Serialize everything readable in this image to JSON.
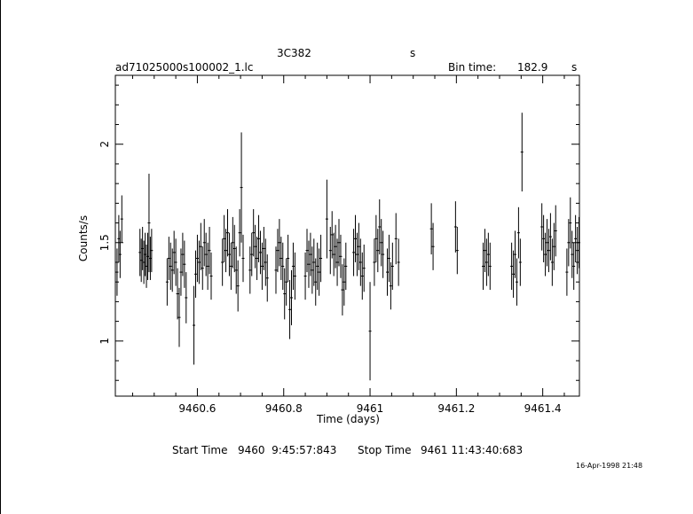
{
  "header": {
    "object": "3C382",
    "object_unit": "s",
    "file": "ad71025000s100002_1.lc",
    "bin_label": "Bin time:",
    "bin_value": "182.9",
    "bin_unit": "s"
  },
  "footer": {
    "start_label": "Start Time",
    "start_value": "9460  9:45:57:843",
    "stop_label": "Stop Time",
    "stop_value": "9461 11:43:40:683",
    "timestamp": "16-Apr-1998 21:48"
  },
  "chart_data": {
    "type": "scatter",
    "xlabel": "Time (days)",
    "ylabel": "Counts/s",
    "xlim": [
      9460.41,
      9461.485
    ],
    "ylim": [
      0.72,
      2.35
    ],
    "xticks": [
      9460.6,
      9460.8,
      9461,
      9461.2,
      9461.4
    ],
    "xtick_labels": [
      "9460.6",
      "9460.8",
      "9461",
      "9461.2",
      "9461.4"
    ],
    "yticks": [
      1,
      1.5,
      2
    ],
    "ytick_labels": [
      "1",
      "1.5",
      "2"
    ],
    "series": [
      {
        "style": "error-bars",
        "points": [
          [
            9460.414,
            1.35,
            0.12
          ],
          [
            9460.418,
            1.52,
            0.12
          ],
          [
            9460.421,
            1.44,
            0.12
          ],
          [
            9460.425,
            1.62,
            0.12
          ],
          [
            9460.467,
            1.45,
            0.12
          ],
          [
            9460.47,
            1.41,
            0.11
          ],
          [
            9460.473,
            1.47,
            0.11
          ],
          [
            9460.476,
            1.4,
            0.11
          ],
          [
            9460.479,
            1.44,
            0.11
          ],
          [
            9460.482,
            1.38,
            0.11
          ],
          [
            9460.485,
            1.43,
            0.12
          ],
          [
            9460.488,
            1.6,
            0.25
          ],
          [
            9460.491,
            1.42,
            0.11
          ],
          [
            9460.494,
            1.46,
            0.11
          ],
          [
            9460.53,
            1.3,
            0.12
          ],
          [
            9460.534,
            1.42,
            0.11
          ],
          [
            9460.538,
            1.38,
            0.12
          ],
          [
            9460.542,
            1.36,
            0.11
          ],
          [
            9460.546,
            1.45,
            0.11
          ],
          [
            9460.55,
            1.4,
            0.12
          ],
          [
            9460.554,
            1.24,
            0.13
          ],
          [
            9460.558,
            1.12,
            0.15
          ],
          [
            9460.562,
            1.35,
            0.12
          ],
          [
            9460.566,
            1.44,
            0.11
          ],
          [
            9460.57,
            1.39,
            0.12
          ],
          [
            9460.574,
            1.22,
            0.13
          ],
          [
            9460.592,
            1.08,
            0.2
          ],
          [
            9460.596,
            1.34,
            0.12
          ],
          [
            9460.6,
            1.42,
            0.12
          ],
          [
            9460.604,
            1.4,
            0.11
          ],
          [
            9460.608,
            1.48,
            0.12
          ],
          [
            9460.612,
            1.37,
            0.11
          ],
          [
            9460.616,
            1.5,
            0.12
          ],
          [
            9460.62,
            1.44,
            0.11
          ],
          [
            9460.624,
            1.38,
            0.12
          ],
          [
            9460.628,
            1.46,
            0.12
          ],
          [
            9460.632,
            1.33,
            0.12
          ],
          [
            9460.658,
            1.4,
            0.12
          ],
          [
            9460.662,
            1.52,
            0.12
          ],
          [
            9460.666,
            1.46,
            0.11
          ],
          [
            9460.67,
            1.55,
            0.12
          ],
          [
            9460.674,
            1.44,
            0.11
          ],
          [
            9460.678,
            1.38,
            0.12
          ],
          [
            9460.682,
            1.5,
            0.13
          ],
          [
            9460.686,
            1.47,
            0.12
          ],
          [
            9460.69,
            1.36,
            0.12
          ],
          [
            9460.694,
            1.28,
            0.13
          ],
          [
            9460.698,
            1.55,
            0.12
          ],
          [
            9460.702,
            1.78,
            0.28
          ],
          [
            9460.706,
            1.42,
            0.12
          ],
          [
            9460.722,
            1.36,
            0.12
          ],
          [
            9460.726,
            1.44,
            0.11
          ],
          [
            9460.73,
            1.55,
            0.12
          ],
          [
            9460.734,
            1.48,
            0.11
          ],
          [
            9460.738,
            1.42,
            0.11
          ],
          [
            9460.742,
            1.52,
            0.12
          ],
          [
            9460.746,
            1.45,
            0.11
          ],
          [
            9460.75,
            1.38,
            0.12
          ],
          [
            9460.754,
            1.47,
            0.11
          ],
          [
            9460.758,
            1.4,
            0.12
          ],
          [
            9460.762,
            1.32,
            0.12
          ],
          [
            9460.782,
            1.36,
            0.12
          ],
          [
            9460.786,
            1.46,
            0.11
          ],
          [
            9460.79,
            1.5,
            0.12
          ],
          [
            9460.794,
            1.42,
            0.11
          ],
          [
            9460.798,
            1.38,
            0.12
          ],
          [
            9460.802,
            1.24,
            0.13
          ],
          [
            9460.806,
            1.3,
            0.12
          ],
          [
            9460.81,
            1.42,
            0.12
          ],
          [
            9460.814,
            1.16,
            0.15
          ],
          [
            9460.818,
            1.22,
            0.14
          ],
          [
            9460.822,
            1.38,
            0.12
          ],
          [
            9460.826,
            1.33,
            0.12
          ],
          [
            9460.85,
            1.33,
            0.12
          ],
          [
            9460.854,
            1.46,
            0.11
          ],
          [
            9460.858,
            1.39,
            0.12
          ],
          [
            9460.862,
            1.44,
            0.11
          ],
          [
            9460.866,
            1.36,
            0.12
          ],
          [
            9460.87,
            1.4,
            0.12
          ],
          [
            9460.874,
            1.3,
            0.12
          ],
          [
            9460.878,
            1.38,
            0.12
          ],
          [
            9460.882,
            1.35,
            0.12
          ],
          [
            9460.886,
            1.42,
            0.12
          ],
          [
            9460.9,
            1.62,
            0.2
          ],
          [
            9460.908,
            1.46,
            0.12
          ],
          [
            9460.912,
            1.54,
            0.12
          ],
          [
            9460.916,
            1.44,
            0.11
          ],
          [
            9460.92,
            1.48,
            0.11
          ],
          [
            9460.924,
            1.4,
            0.12
          ],
          [
            9460.928,
            1.5,
            0.12
          ],
          [
            9460.932,
            1.43,
            0.11
          ],
          [
            9460.936,
            1.26,
            0.13
          ],
          [
            9460.94,
            1.3,
            0.12
          ],
          [
            9460.944,
            1.38,
            0.12
          ],
          [
            9460.962,
            1.45,
            0.12
          ],
          [
            9460.966,
            1.52,
            0.12
          ],
          [
            9460.97,
            1.44,
            0.11
          ],
          [
            9460.974,
            1.48,
            0.12
          ],
          [
            9460.978,
            1.4,
            0.12
          ],
          [
            9460.982,
            1.33,
            0.12
          ],
          [
            9460.986,
            1.37,
            0.12
          ],
          [
            9461.0,
            1.05,
            0.25
          ],
          [
            9461.01,
            1.4,
            0.12
          ],
          [
            9461.014,
            1.52,
            0.12
          ],
          [
            9461.018,
            1.46,
            0.11
          ],
          [
            9461.022,
            1.58,
            0.14
          ],
          [
            9461.026,
            1.5,
            0.12
          ],
          [
            9461.03,
            1.44,
            0.12
          ],
          [
            9461.04,
            1.35,
            0.12
          ],
          [
            9461.044,
            1.42,
            0.12
          ],
          [
            9461.048,
            1.28,
            0.12
          ],
          [
            9461.052,
            1.38,
            0.12
          ],
          [
            9461.06,
            1.52,
            0.13
          ],
          [
            9461.066,
            1.4,
            0.12
          ],
          [
            9461.142,
            1.57,
            0.13
          ],
          [
            9461.146,
            1.48,
            0.12
          ],
          [
            9461.198,
            1.58,
            0.13
          ],
          [
            9461.202,
            1.46,
            0.12
          ],
          [
            9461.262,
            1.38,
            0.12
          ],
          [
            9461.266,
            1.46,
            0.11
          ],
          [
            9461.27,
            1.4,
            0.12
          ],
          [
            9461.274,
            1.44,
            0.11
          ],
          [
            9461.278,
            1.38,
            0.12
          ],
          [
            9461.328,
            1.38,
            0.12
          ],
          [
            9461.332,
            1.34,
            0.12
          ],
          [
            9461.336,
            1.44,
            0.12
          ],
          [
            9461.34,
            1.3,
            0.12
          ],
          [
            9461.344,
            1.55,
            0.13
          ],
          [
            9461.348,
            1.4,
            0.12
          ],
          [
            9461.352,
            1.96,
            0.2
          ],
          [
            9461.398,
            1.58,
            0.12
          ],
          [
            9461.402,
            1.52,
            0.12
          ],
          [
            9461.406,
            1.44,
            0.11
          ],
          [
            9461.41,
            1.5,
            0.12
          ],
          [
            9461.414,
            1.46,
            0.11
          ],
          [
            9461.418,
            1.53,
            0.12
          ],
          [
            9461.422,
            1.4,
            0.12
          ],
          [
            9461.426,
            1.48,
            0.12
          ],
          [
            9461.43,
            1.56,
            0.13
          ],
          [
            9461.456,
            1.35,
            0.12
          ],
          [
            9461.46,
            1.5,
            0.12
          ],
          [
            9461.464,
            1.6,
            0.13
          ],
          [
            9461.468,
            1.44,
            0.12
          ],
          [
            9461.472,
            1.38,
            0.12
          ],
          [
            9461.476,
            1.52,
            0.12
          ],
          [
            9461.48,
            1.46,
            0.12
          ],
          [
            9461.484,
            1.5,
            0.13
          ]
        ]
      }
    ]
  }
}
